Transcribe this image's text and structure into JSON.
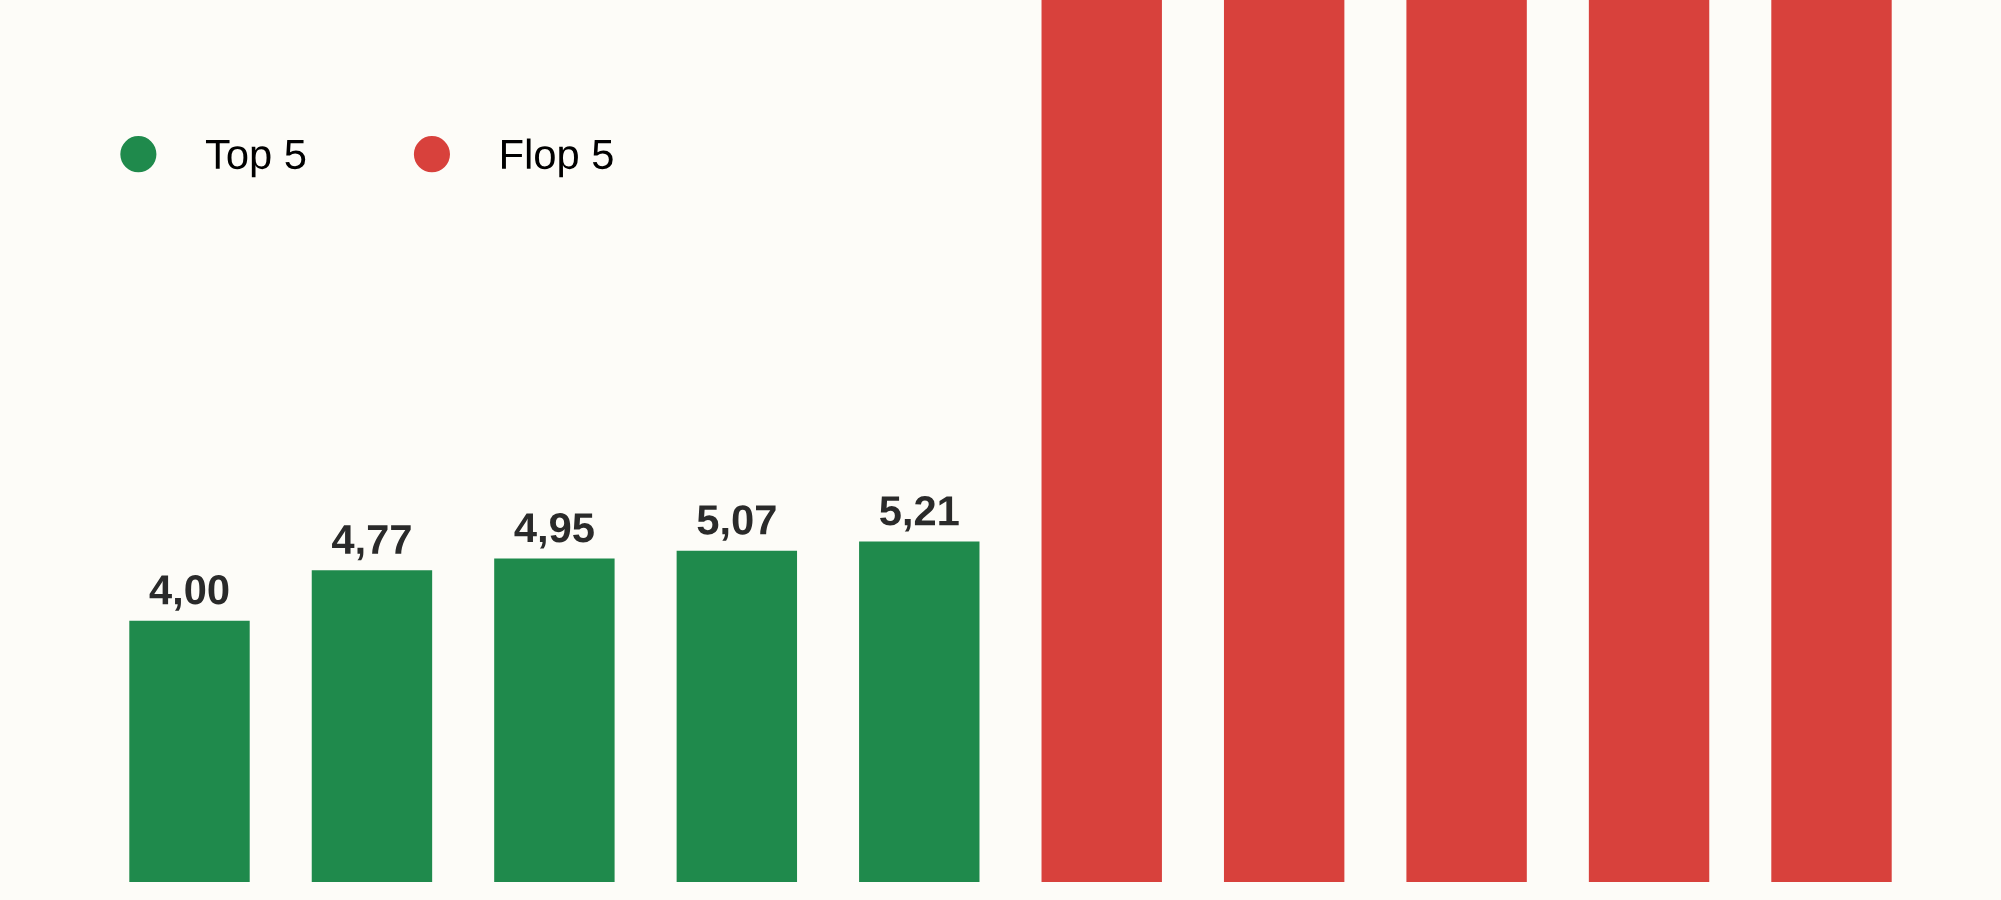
{
  "chart_data": {
    "type": "bar",
    "categories": [
      null,
      null,
      null,
      null,
      null,
      null,
      null,
      null,
      null,
      null
    ],
    "series": [
      {
        "name": "Top 5",
        "color": "#1f8a4c",
        "values": [
          4.0,
          4.77,
          4.95,
          5.07,
          5.21,
          null,
          null,
          null,
          null,
          null
        ],
        "value_labels": [
          "4,00",
          "4,77",
          "4,95",
          "5,07",
          "5,21",
          null,
          null,
          null,
          null,
          null
        ]
      },
      {
        "name": "Flop 5",
        "color": "#d8413c",
        "values": [
          null,
          null,
          null,
          null,
          null,
          13.5,
          13.5,
          13.5,
          13.5,
          13.5
        ]
      }
    ],
    "stacked": true,
    "ylim": [
      0,
      13.5
    ],
    "grid": false,
    "legend": "top left"
  }
}
